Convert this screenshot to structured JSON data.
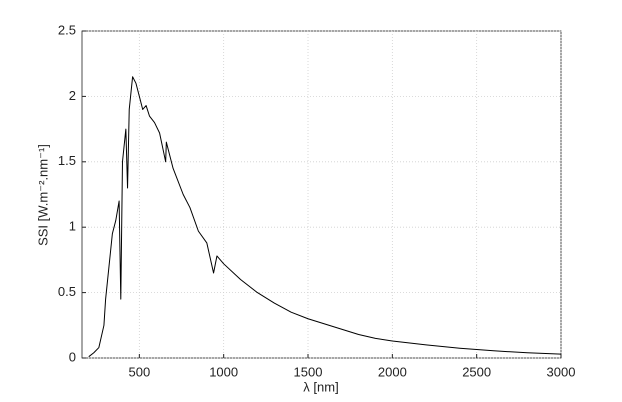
{
  "chart_data": {
    "type": "line",
    "x_label": "λ [nm]",
    "y_label": "SSI [W.m⁻².nm⁻¹]",
    "x": [
      200,
      230,
      260,
      290,
      300,
      320,
      340,
      360,
      380,
      390,
      400,
      420,
      430,
      440,
      460,
      480,
      500,
      520,
      540,
      560,
      590,
      620,
      656,
      660,
      700,
      760,
      800,
      850,
      900,
      940,
      960,
      1000,
      1100,
      1200,
      1300,
      1400,
      1500,
      1600,
      1700,
      1800,
      1900,
      2000,
      2200,
      2400,
      2600,
      2800,
      3000
    ],
    "values": [
      0.01,
      0.04,
      0.08,
      0.25,
      0.45,
      0.7,
      0.95,
      1.05,
      1.2,
      0.45,
      1.5,
      1.75,
      1.3,
      1.9,
      2.15,
      2.1,
      2.0,
      1.9,
      1.93,
      1.85,
      1.8,
      1.72,
      1.5,
      1.65,
      1.45,
      1.25,
      1.15,
      0.97,
      0.88,
      0.65,
      0.78,
      0.72,
      0.6,
      0.5,
      0.42,
      0.35,
      0.3,
      0.26,
      0.22,
      0.18,
      0.15,
      0.13,
      0.1,
      0.075,
      0.055,
      0.04,
      0.03
    ],
    "color": "#000000",
    "xlim": [
      160,
      3000
    ],
    "xticks": [
      500,
      1000,
      1500,
      2000,
      2500,
      3000
    ],
    "ylim": [
      0,
      2.5
    ],
    "yticks": [
      0,
      0.5,
      1,
      1.5,
      2,
      2.5
    ],
    "grid": true
  }
}
